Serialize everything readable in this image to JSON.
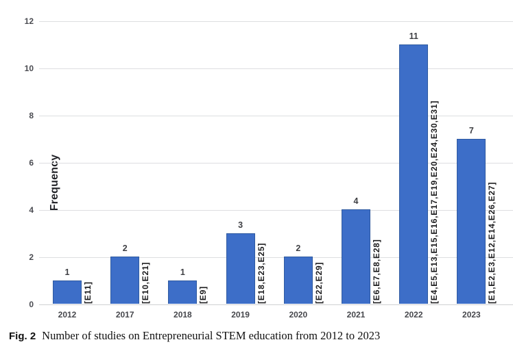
{
  "chart_data": {
    "type": "bar",
    "categories": [
      "2012",
      "2017",
      "2018",
      "2019",
      "2020",
      "2021",
      "2022",
      "2023"
    ],
    "values": [
      1,
      2,
      1,
      3,
      2,
      4,
      11,
      7
    ],
    "bar_value_labels": [
      "1",
      "2",
      "1",
      "3",
      "2",
      "4",
      "11",
      "7"
    ],
    "bar_study_labels": [
      "[E11]",
      "[E10,E21]",
      "[E9]",
      "[E18,E23,E25]",
      "[E22,E29]",
      "[E6,E7,E8,E28]",
      "[E4,E5,E13,E15,E16,E17,E19,E20,E24,E30,E31]",
      "[E1,E2,E3,E12,E14,E26,E27]"
    ],
    "title": "",
    "xlabel": "",
    "ylabel": "Frequency",
    "ylim": [
      0,
      12
    ],
    "yticks": [
      0,
      2,
      4,
      6,
      8,
      10,
      12
    ],
    "grid": true,
    "legend": false,
    "bar_color": "#3d6ec8",
    "bar_border_color": "#2f5aa0",
    "gridline_color": "#dddee0"
  },
  "caption": {
    "label": "Fig. 2",
    "text": "Number of studies on Entrepreneurial STEM education from 2012 to 2023"
  }
}
